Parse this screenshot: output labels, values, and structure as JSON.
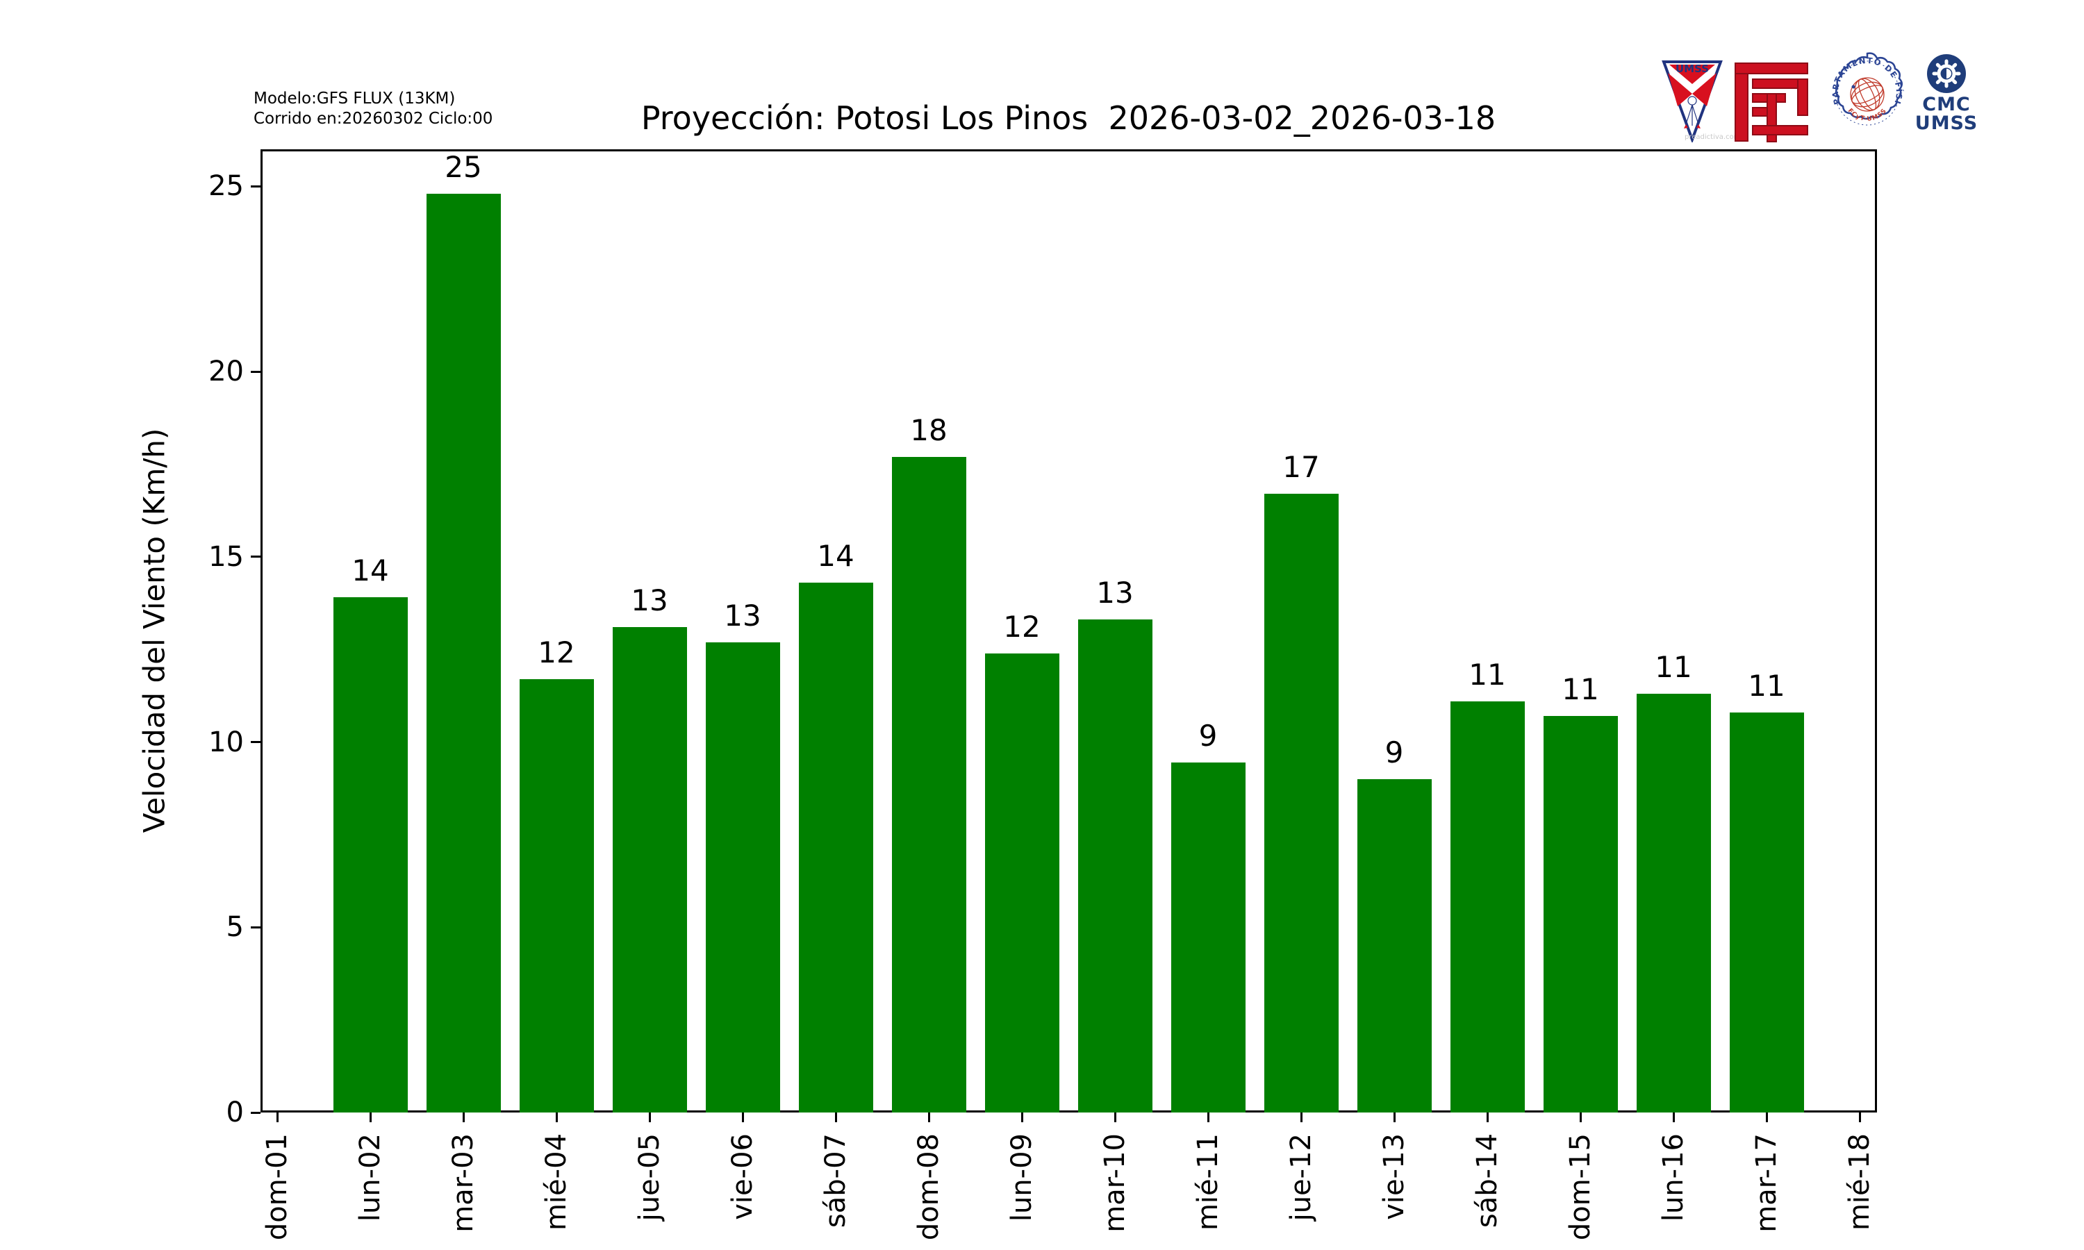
{
  "header": {
    "model_line1": "Modelo:GFS FLUX (13KM)",
    "model_line2": "Corrido en:20260302 Ciclo:00",
    "title": "Proyección: Potosi Los Pinos  2026-03-02_2026-03-18"
  },
  "logos": {
    "umss_shield": {
      "text": "UMSS",
      "watermark": "preadictiva.com"
    },
    "fisica_seal": {
      "arc_top": "DEPARTAMENTO DE FÍSICA",
      "arc_bottom": "FCyT-UMSS"
    },
    "cmc": {
      "line1": "CMC",
      "line2": "UMSS"
    }
  },
  "chart_data": {
    "type": "bar",
    "title": "Proyección: Potosi Los Pinos  2026-03-02_2026-03-18",
    "xlabel": "",
    "ylabel": "Velocidad del Viento (Km/h)",
    "categories": [
      "dom-01",
      "lun-02",
      "mar-03",
      "mié-04",
      "jue-05",
      "vie-06",
      "sáb-07",
      "dom-08",
      "lun-09",
      "mar-10",
      "mié-11",
      "jue-12",
      "vie-13",
      "sáb-14",
      "dom-15",
      "lun-16",
      "mar-17",
      "mié-18"
    ],
    "values": [
      0,
      13.9,
      24.8,
      11.7,
      13.1,
      12.7,
      14.3,
      17.7,
      12.4,
      13.3,
      9.45,
      16.7,
      9.0,
      11.1,
      10.7,
      11.3,
      10.8,
      0
    ],
    "bar_labels": [
      "",
      "14",
      "25",
      "12",
      "13",
      "13",
      "14",
      "18",
      "12",
      "13",
      "9",
      "17",
      "9",
      "11",
      "11",
      "11",
      "11",
      ""
    ],
    "yticks": [
      0,
      5,
      10,
      15,
      20,
      25
    ],
    "ylim": [
      0,
      26
    ],
    "bar_color": "#008000",
    "grid": false,
    "legend_position": "none"
  },
  "colors": {
    "bar": "#008000",
    "axis": "#000000",
    "navy": "#1f3d7a",
    "brand_red": "#cc1020",
    "seal_red": "#c03a2b"
  }
}
